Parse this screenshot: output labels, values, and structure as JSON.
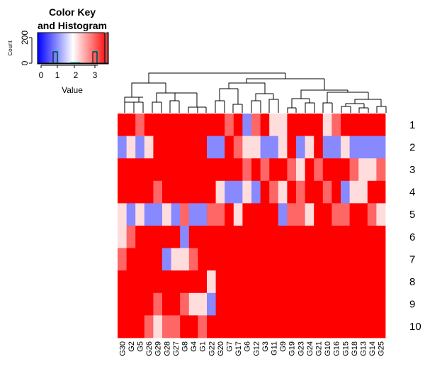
{
  "chart_data": {
    "type": "heatmap",
    "colors": {
      "low": "#0000FF",
      "mid": "#FFFFFF",
      "high": "#FF0000",
      "light_red": "#FF6666",
      "pale_red": "#FFDDDD",
      "light_blue": "#8888FF"
    },
    "color_key": {
      "title_line1": "Color Key",
      "title_line2": "and Histogram",
      "ylabel": "Count",
      "yticks": [
        "0",
        "200"
      ],
      "xlabel": "Value",
      "xticks": [
        "0",
        "1",
        "2",
        "3"
      ],
      "range": [
        0,
        3.5
      ]
    },
    "columns": [
      "G30",
      "G2",
      "G5",
      "G26",
      "G29",
      "G28",
      "G27",
      "G8",
      "G4",
      "G1",
      "G22",
      "G20",
      "G7",
      "G17",
      "G6",
      "G12",
      "G3",
      "G11",
      "G9",
      "G19",
      "G23",
      "G24",
      "G21",
      "G10",
      "G16",
      "G15",
      "G18",
      "G13",
      "G14",
      "G25"
    ],
    "rows": [
      "1",
      "2",
      "3",
      "4",
      "5",
      "6",
      "7",
      "8",
      "9",
      "10"
    ],
    "row_colors": [
      [
        "#FF0000",
        "#FF0000",
        "#FF6666",
        "#FF0000",
        "#FF0000",
        "#FF0000",
        "#FF0000",
        "#FF0000",
        "#FF0000",
        "#FF0000",
        "#FF0000",
        "#FF0000",
        "#FF6666",
        "#FF0000",
        "#8888FF",
        "#FF6666",
        "#FF0000",
        "#FFDDDD",
        "#FFDDDD",
        "#FF0000",
        "#FF0000",
        "#FF0000",
        "#FF0000",
        "#FFDDDD",
        "#FF6666",
        "#FF0000",
        "#FF0000",
        "#FF0000",
        "#FF0000",
        "#FF0000"
      ],
      [
        "#8888FF",
        "#FFDDDD",
        "#8888FF",
        "#FFDDDD",
        "#FF0000",
        "#FF0000",
        "#FF0000",
        "#FF0000",
        "#FF0000",
        "#FF0000",
        "#8888FF",
        "#8888FF",
        "#FF0000",
        "#FF6666",
        "#FFDDDD",
        "#FFDDDD",
        "#8888FF",
        "#8888FF",
        "#FFDDDD",
        "#FF0000",
        "#8888FF",
        "#FFDDDD",
        "#FF0000",
        "#8888FF",
        "#8888FF",
        "#FFDDDD",
        "#8888FF",
        "#8888FF",
        "#8888FF",
        "#8888FF"
      ],
      [
        "#FF0000",
        "#FF0000",
        "#FF0000",
        "#FF0000",
        "#FF0000",
        "#FF0000",
        "#FF0000",
        "#FF0000",
        "#FF0000",
        "#FF0000",
        "#FF0000",
        "#FF0000",
        "#FF0000",
        "#FF0000",
        "#FF6666",
        "#FF0000",
        "#FF6666",
        "#FF0000",
        "#FF0000",
        "#FF6666",
        "#FFDDDD",
        "#FF0000",
        "#FF6666",
        "#FF0000",
        "#FF0000",
        "#FF0000",
        "#FF6666",
        "#FFDDDD",
        "#FFDDDD",
        "#FF6666"
      ],
      [
        "#FF0000",
        "#FF0000",
        "#FF0000",
        "#FF0000",
        "#FF6666",
        "#FF0000",
        "#FF0000",
        "#FF0000",
        "#FF0000",
        "#FF0000",
        "#FF0000",
        "#FFDDDD",
        "#8888FF",
        "#8888FF",
        "#FFDDDD",
        "#8888FF",
        "#FF0000",
        "#FF6666",
        "#FFDDDD",
        "#FF0000",
        "#FF6666",
        "#FF0000",
        "#FF0000",
        "#FF6666",
        "#FF0000",
        "#8888FF",
        "#FFDDDD",
        "#FFDDDD",
        "#FF0000",
        "#FF0000"
      ],
      [
        "#FFDDDD",
        "#8888FF",
        "#FFDDDD",
        "#8888FF",
        "#8888FF",
        "#FFDDDD",
        "#8888FF",
        "#FF6666",
        "#8888FF",
        "#8888FF",
        "#FF6666",
        "#FF6666",
        "#FF0000",
        "#FFDDDD",
        "#FF0000",
        "#FF0000",
        "#FF0000",
        "#FF0000",
        "#8888FF",
        "#FF6666",
        "#FF6666",
        "#FFDDDD",
        "#FF0000",
        "#FF0000",
        "#FF6666",
        "#FF6666",
        "#FF0000",
        "#FF0000",
        "#FF6666",
        "#FFDDDD"
      ],
      [
        "#FFDDDD",
        "#FF6666",
        "#FF0000",
        "#FF0000",
        "#FF0000",
        "#FF0000",
        "#FF0000",
        "#8888FF",
        "#FF0000",
        "#FF0000",
        "#FF0000",
        "#FF0000",
        "#FF0000",
        "#FF0000",
        "#FF0000",
        "#FF0000",
        "#FF0000",
        "#FF0000",
        "#FF0000",
        "#FF0000",
        "#FF0000",
        "#FF0000",
        "#FF0000",
        "#FF0000",
        "#FF0000",
        "#FF0000",
        "#FF0000",
        "#FF0000",
        "#FF0000",
        "#FF0000"
      ],
      [
        "#FF6666",
        "#FF0000",
        "#FF0000",
        "#FF0000",
        "#FF0000",
        "#8888FF",
        "#FFDDDD",
        "#FFDDDD",
        "#FF6666",
        "#FF0000",
        "#FF0000",
        "#FF0000",
        "#FF0000",
        "#FF0000",
        "#FF0000",
        "#FF0000",
        "#FF0000",
        "#FF0000",
        "#FF0000",
        "#FF0000",
        "#FF0000",
        "#FF0000",
        "#FF0000",
        "#FF0000",
        "#FF0000",
        "#FF0000",
        "#FF0000",
        "#FF0000",
        "#FF0000",
        "#FF0000"
      ],
      [
        "#FF0000",
        "#FF0000",
        "#FF0000",
        "#FF0000",
        "#FF0000",
        "#FF0000",
        "#FF0000",
        "#FF0000",
        "#FF0000",
        "#FF0000",
        "#FFDDDD",
        "#FF0000",
        "#FF0000",
        "#FF0000",
        "#FF0000",
        "#FF0000",
        "#FF0000",
        "#FF0000",
        "#FF0000",
        "#FF0000",
        "#FF0000",
        "#FF0000",
        "#FF0000",
        "#FF0000",
        "#FF0000",
        "#FF0000",
        "#FF0000",
        "#FF0000",
        "#FF0000",
        "#FF0000"
      ],
      [
        "#FF0000",
        "#FF0000",
        "#FF0000",
        "#FF0000",
        "#FF6666",
        "#FF0000",
        "#FF0000",
        "#FF6666",
        "#FFDDDD",
        "#FFDDDD",
        "#8888FF",
        "#FF0000",
        "#FF0000",
        "#FF0000",
        "#FF0000",
        "#FF0000",
        "#FF0000",
        "#FF0000",
        "#FF0000",
        "#FF0000",
        "#FF0000",
        "#FF0000",
        "#FF0000",
        "#FF0000",
        "#FF0000",
        "#FF0000",
        "#FF0000",
        "#FF0000",
        "#FF0000",
        "#FF0000"
      ],
      [
        "#FF0000",
        "#FF0000",
        "#FF0000",
        "#FF6666",
        "#FFDDDD",
        "#FF6666",
        "#FF6666",
        "#FF0000",
        "#FF0000",
        "#FF6666",
        "#FF0000",
        "#FF0000",
        "#FF0000",
        "#FF0000",
        "#FF0000",
        "#FF0000",
        "#FF0000",
        "#FF0000",
        "#FF0000",
        "#FF0000",
        "#FF0000",
        "#FF0000",
        "#FF0000",
        "#FF0000",
        "#FF0000",
        "#FF0000",
        "#FF0000",
        "#FF0000",
        "#FF0000",
        "#FF0000"
      ]
    ]
  }
}
